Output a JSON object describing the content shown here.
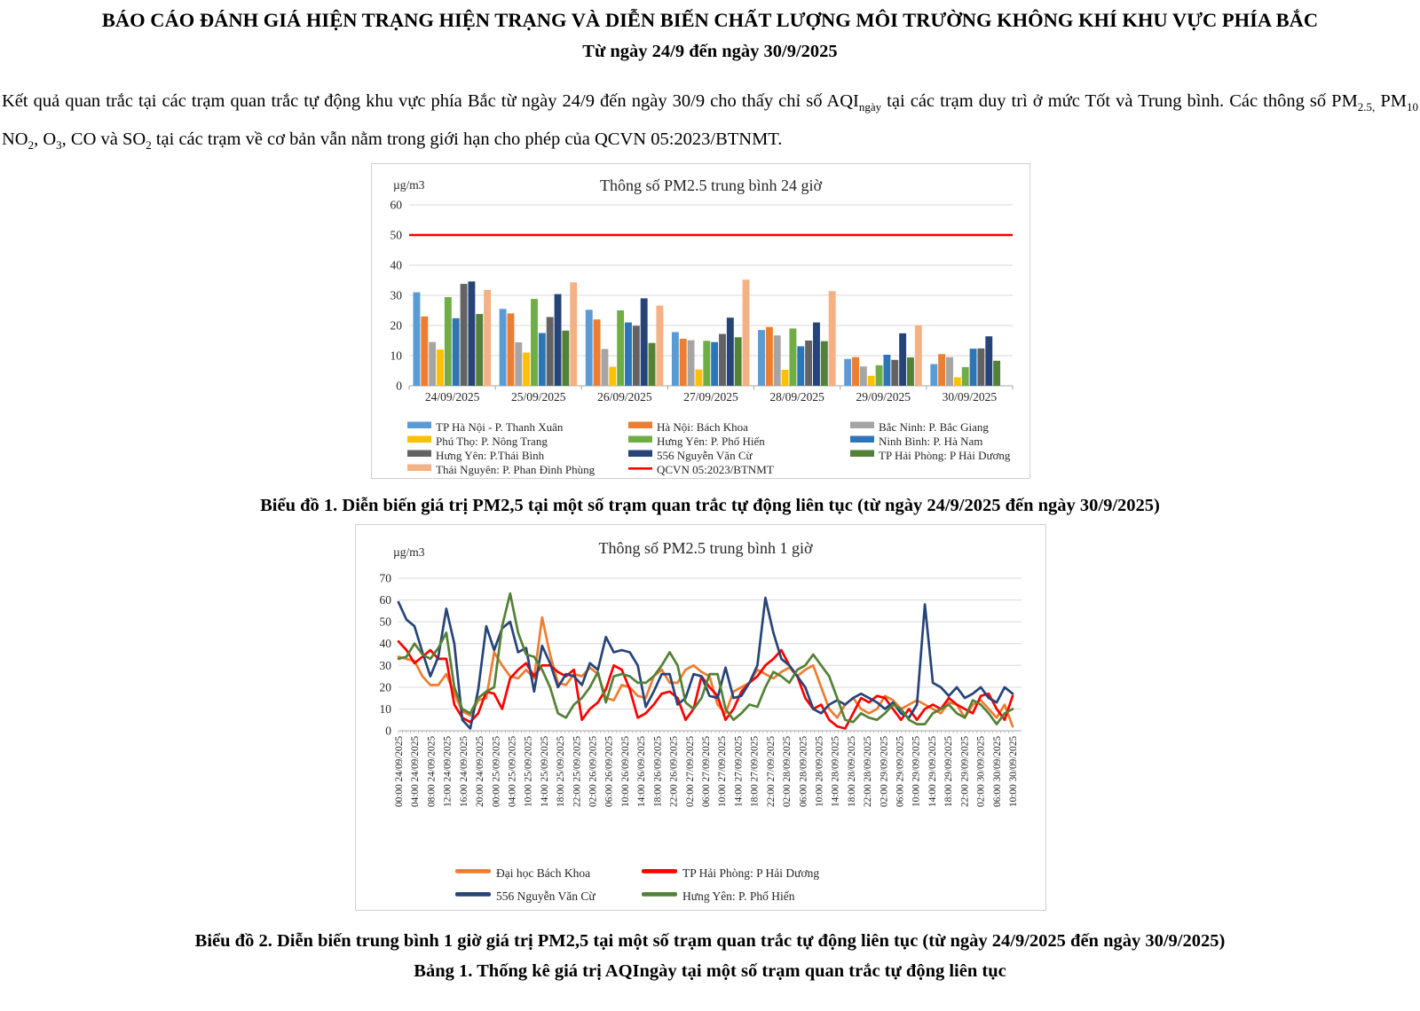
{
  "header": {
    "title": "BÁO CÁO ĐÁNH GIÁ HIỆN TRẠNG HIỆN TRẠNG VÀ DIỄN BIẾN CHẤT LƯỢNG MÔI TRƯỜNG KHÔNG KHÍ KHU VỰC PHÍA BẮC",
    "subtitle": "Từ ngày 24/9 đến ngày 30/9/2025"
  },
  "paragraph": {
    "segments": [
      {
        "text": "Kết quả quan trắc tại các trạm quan trắc tự động khu vực phía Bắc từ ngày 24/9 đến ngày 30/9 cho thấy chỉ số AQI"
      },
      {
        "text": "ngày",
        "sub": true
      },
      {
        "text": " tại các trạm duy trì ở mức Tốt và Trung bình. Các thông số PM"
      },
      {
        "text": "2.5,",
        "sub": true
      },
      {
        "text": " PM"
      },
      {
        "text": "10",
        "sub": true
      },
      {
        "text": "  NO"
      },
      {
        "text": "2",
        "sub": true
      },
      {
        "text": ", O"
      },
      {
        "text": "3",
        "sub": true
      },
      {
        "text": ", CO và SO"
      },
      {
        "text": "2",
        "sub": true
      },
      {
        "text": " tại các trạm về cơ bản vẫn nằm trong giới hạn cho phép của QCVN 05:2023/BTNMT."
      }
    ]
  },
  "captions": {
    "chart1": "Biểu đồ 1. Diễn biến giá trị PM2,5 tại một số trạm quan trắc tự động liên tục (từ ngày 24/9/2025 đến ngày 30/9/2025)",
    "chart2": "Biểu đồ 2. Diễn biến trung bình 1 giờ giá trị PM2,5 tại một số trạm quan trắc tự động liên tục (từ ngày 24/9/2025 đến ngày 30/9/2025)",
    "table1": "Bảng 1. Thống kê giá trị AQIngày tại một số trạm quan trắc tự động liên tục"
  },
  "chart_data": [
    {
      "type": "bar",
      "title": "Thông số PM2.5 trung bình 24 giờ",
      "unit_label": "µg/m3",
      "ylim": [
        0,
        60
      ],
      "ytick_step": 10,
      "grid": true,
      "legend_position": "bottom",
      "categories": [
        "24/09/2025",
        "25/09/2025",
        "26/09/2025",
        "27/09/2025",
        "28/09/2025",
        "29/09/2025",
        "30/09/2025"
      ],
      "series": [
        {
          "name": "TP Hà Nội - P. Thanh Xuân",
          "color": "#5B9BD5",
          "values": [
            31,
            25.5,
            25.2,
            17.8,
            18.5,
            8.9,
            7.2
          ]
        },
        {
          "name": "Hà Nội: Bách Khoa",
          "color": "#ED7D31",
          "values": [
            23,
            24,
            22,
            15.6,
            19.5,
            9.5,
            10.5
          ]
        },
        {
          "name": "Bắc Ninh: P. Bắc Giang",
          "color": "#A5A5A5",
          "values": [
            14.5,
            14.4,
            12.2,
            15.1,
            16.7,
            6.4,
            9.5
          ]
        },
        {
          "name": "Phú Thọ: P. Nông Trang",
          "color": "#FFC000",
          "values": [
            12,
            11,
            6.3,
            5.4,
            5.3,
            3.3,
            2.8
          ]
        },
        {
          "name": "Hưng Yên: P. Phố Hiến",
          "color": "#70AD47",
          "values": [
            29.4,
            28.8,
            25,
            14.9,
            19,
            6.8,
            6.2
          ]
        },
        {
          "name": "Ninh Bình: P. Hà Nam",
          "color": "#2E75B6",
          "values": [
            22.4,
            17.5,
            21,
            14.5,
            13.1,
            10.3,
            12.3
          ]
        },
        {
          "name": "Hưng Yên: P.Thái Bình",
          "color": "#636363",
          "values": [
            33.8,
            22.8,
            19.9,
            17.2,
            15,
            8.6,
            12.4
          ]
        },
        {
          "name": "556 Nguyễn Văn Cừ",
          "color": "#264478",
          "values": [
            34.6,
            30.4,
            29,
            22.6,
            21,
            17.4,
            16.4
          ]
        },
        {
          "name": "TP Hải Phòng: P Hải Dương",
          "color": "#538135",
          "values": [
            23.8,
            18.3,
            14.2,
            16.1,
            14.8,
            9.4,
            8.3
          ]
        },
        {
          "name": "Thái Nguyên: P. Phan Đình Phùng",
          "color": "#F4B183",
          "values": [
            31.8,
            34.3,
            26.6,
            35.2,
            31.4,
            20.1,
            0
          ]
        }
      ],
      "limit_line": {
        "label": "QCVN 05:2023/BTNMT",
        "value": 50,
        "color": "#FF0000"
      }
    },
    {
      "type": "line",
      "title": "Thông số PM2.5 trung bình 1 giờ",
      "unit_label": "µg/m3",
      "ylim": [
        0,
        70
      ],
      "ytick_step": 10,
      "grid": true,
      "legend_position": "bottom",
      "x_tick_labels": [
        "00:00 24/09/2025",
        "04:00 24/09/2025",
        "08:00 24/09/2025",
        "12:00 24/09/2025",
        "16:00 24/09/2025",
        "20:00 24/09/2025",
        "00:00 25/09/2025",
        "04:00 25/09/2025",
        "10:00 25/09/2025",
        "14:00 25/09/2025",
        "18:00 25/09/2025",
        "22:00 25/09/2025",
        "02:00 26/09/2025",
        "06:00 26/09/2025",
        "10:00 26/09/2025",
        "14:00 26/09/2025",
        "18:00 26/09/2025",
        "22:00 26/09/2025",
        "02:00 27/09/2025",
        "06:00 27/09/2025",
        "10:00 27/09/2025",
        "14:00 27/09/2025",
        "18:00 27/09/2025",
        "22:00 27/09/2025",
        "02:00 28/09/2025",
        "06:00 28/09/2025",
        "10:00 28/09/2025",
        "14:00 28/09/2025",
        "18:00 28/09/2025",
        "22:00 28/09/2025",
        "02:00 29/09/2025",
        "06:00 29/09/2025",
        "10:00 29/09/2025",
        "14:00 29/09/2025",
        "18:00 29/09/2025",
        "22:00 29/09/2025",
        "02:00 30/09/2025",
        "06:00 30/09/2025",
        "10:00 30/09/2025"
      ],
      "series": [
        {
          "name": "Đại học Bách Khoa",
          "color": "#ED7D31",
          "values": [
            34,
            33,
            32,
            25,
            21,
            21,
            26,
            17,
            9,
            7,
            14,
            15,
            36,
            30,
            25,
            24,
            28,
            24,
            52,
            35,
            22,
            21,
            26,
            25,
            29,
            26,
            15,
            14,
            21,
            20,
            16,
            15,
            25,
            28,
            22,
            22,
            28,
            30,
            27,
            25,
            12,
            8,
            18,
            20,
            22,
            28,
            26,
            24,
            27,
            29,
            25,
            28,
            30,
            20,
            10,
            6,
            12,
            15,
            10,
            8,
            10,
            16,
            14,
            10,
            12,
            14,
            12,
            10,
            8,
            13,
            12,
            6,
            12,
            14,
            10,
            6,
            12,
            2
          ]
        },
        {
          "name": "TP Hải Phòng: P Hải Dương",
          "color": "#FF0000",
          "values": [
            41,
            37,
            31,
            34,
            37,
            33,
            33,
            12,
            6,
            4,
            8,
            18,
            17,
            10,
            24,
            28,
            31,
            25,
            30,
            30,
            27,
            25,
            28,
            5,
            10,
            13,
            19,
            30,
            28,
            19,
            6,
            8,
            12,
            17,
            18,
            15,
            5,
            10,
            25,
            20,
            16,
            5,
            10,
            18,
            22,
            25,
            30,
            33,
            37,
            30,
            25,
            15,
            10,
            12,
            5,
            2,
            1,
            8,
            15,
            13,
            16,
            15,
            10,
            5,
            10,
            5,
            10,
            12,
            10,
            15,
            12,
            10,
            8,
            16,
            17,
            10,
            5,
            16
          ]
        },
        {
          "name": "556 Nguyễn Văn Cừ",
          "color": "#264478",
          "values": [
            59,
            51,
            48,
            36,
            25,
            34,
            56,
            40,
            5,
            1,
            19,
            48,
            37,
            47,
            50,
            36,
            38,
            18,
            39,
            31,
            20,
            26,
            25,
            21,
            31,
            28,
            43,
            36,
            37,
            36,
            30,
            11,
            18,
            26,
            26,
            12,
            15,
            26,
            25,
            16,
            15,
            29,
            15,
            16,
            22,
            30,
            61,
            45,
            33,
            30,
            25,
            20,
            10,
            8,
            12,
            14,
            12,
            15,
            17,
            15,
            13,
            10,
            13,
            8,
            6,
            12,
            58,
            22,
            20,
            16,
            20,
            15,
            17,
            20,
            15,
            13,
            20,
            17
          ]
        },
        {
          "name": "Hưng Yên: P. Phố Hiến",
          "color": "#538135",
          "values": [
            33,
            34,
            40,
            35,
            33,
            38,
            45,
            20,
            10,
            8,
            15,
            18,
            20,
            48,
            63,
            45,
            35,
            34,
            28,
            20,
            8,
            6,
            12,
            15,
            20,
            27,
            13,
            25,
            26,
            25,
            22,
            22,
            25,
            30,
            36,
            30,
            13,
            10,
            15,
            26,
            26,
            10,
            5,
            8,
            12,
            11,
            20,
            27,
            25,
            22,
            28,
            30,
            35,
            30,
            25,
            15,
            5,
            4,
            8,
            6,
            5,
            8,
            12,
            10,
            5,
            3,
            3,
            8,
            10,
            12,
            8,
            6,
            14,
            12,
            8,
            3,
            8,
            10
          ]
        }
      ]
    }
  ]
}
